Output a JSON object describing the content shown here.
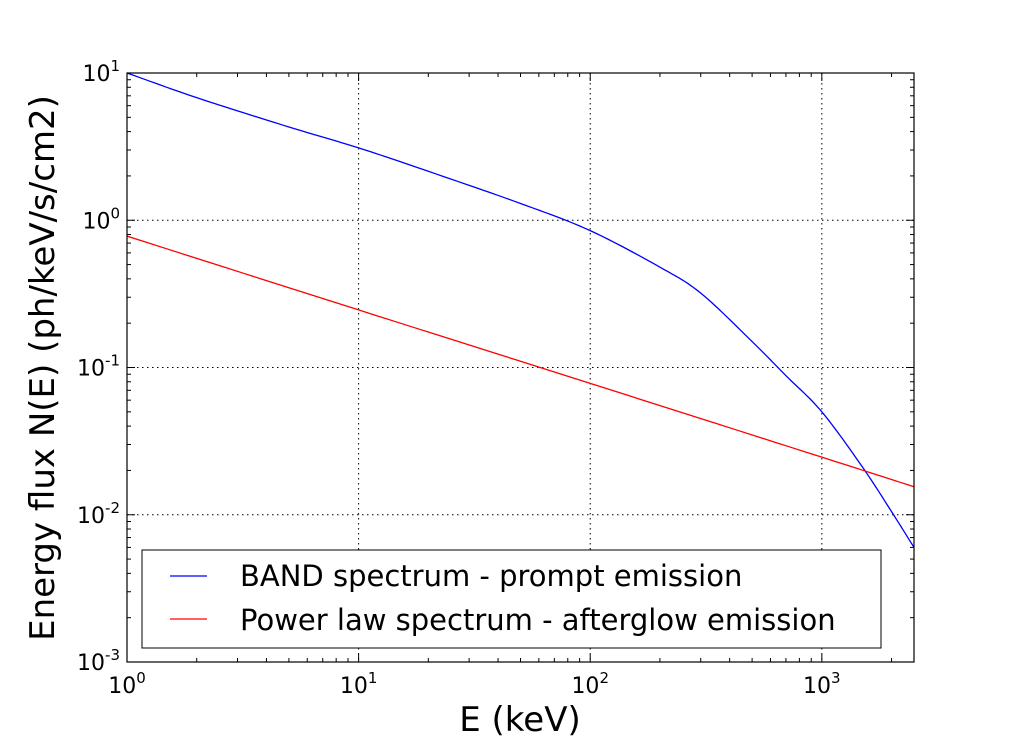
{
  "chart_data": {
    "type": "line",
    "title": "",
    "xlabel": "E (keV)",
    "ylabel": "Energy flux N(E) (ph/keV/s/cm2)",
    "xscale": "log",
    "yscale": "log",
    "xlim": [
      1,
      2500
    ],
    "ylim": [
      0.001,
      10
    ],
    "grid": true,
    "legend_position": "lower-left",
    "x_ticks": [
      {
        "value": 1,
        "base": "10",
        "exp": "0"
      },
      {
        "value": 10,
        "base": "10",
        "exp": "1"
      },
      {
        "value": 100,
        "base": "10",
        "exp": "2"
      },
      {
        "value": 1000,
        "base": "10",
        "exp": "3"
      }
    ],
    "y_ticks": [
      {
        "value": 0.001,
        "base": "10",
        "exp": "-3"
      },
      {
        "value": 0.01,
        "base": "10",
        "exp": "-2"
      },
      {
        "value": 0.1,
        "base": "10",
        "exp": "-1"
      },
      {
        "value": 1,
        "base": "10",
        "exp": "0"
      },
      {
        "value": 10,
        "base": "10",
        "exp": "1"
      }
    ],
    "series": [
      {
        "name": "BAND spectrum - prompt emission",
        "color": "#0000ff",
        "x": [
          1,
          2,
          5,
          10,
          20,
          50,
          100,
          200,
          300,
          500,
          700,
          1000,
          1500,
          2000,
          2500
        ],
        "y": [
          10,
          6.8,
          4.3,
          3.1,
          2.15,
          1.3,
          0.85,
          0.48,
          0.32,
          0.15,
          0.088,
          0.05,
          0.021,
          0.0105,
          0.006
        ]
      },
      {
        "name": "Power law spectrum - afterglow emission",
        "color": "#ff0000",
        "x": [
          1,
          10,
          100,
          1000,
          2500
        ],
        "y": [
          0.78,
          0.246,
          0.078,
          0.0246,
          0.0155
        ]
      }
    ]
  }
}
